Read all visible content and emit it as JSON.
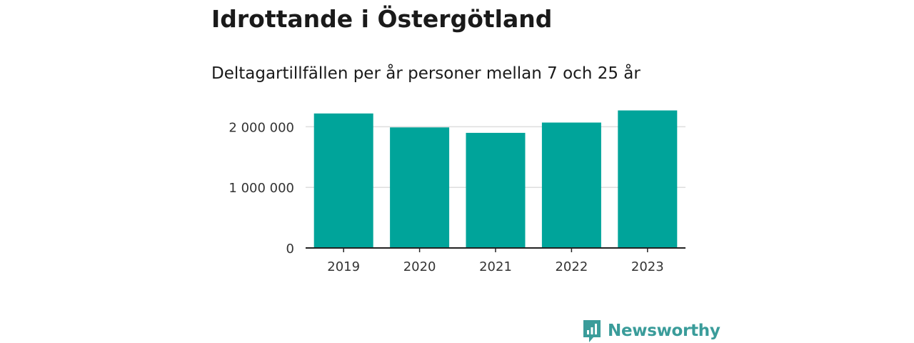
{
  "title": "Idrottande i Östergötland",
  "subtitle": "Deltagartillfällen per år personer mellan 7 och 25 år",
  "brand": {
    "name": "Newsworthy",
    "logo_icon": "newsworthy-logo-icon",
    "color": "#3a9c9a"
  },
  "colors": {
    "bar": "#00a49a",
    "grid": "#dddddd",
    "axis": "#222222"
  },
  "chart_data": {
    "type": "bar",
    "categories": [
      "2019",
      "2020",
      "2021",
      "2022",
      "2023"
    ],
    "values": [
      2220000,
      1990000,
      1900000,
      2070000,
      2270000
    ],
    "ylim": [
      0,
      2300000
    ],
    "yticks": [
      0,
      1000000,
      2000000
    ],
    "ytick_labels": [
      "0",
      "1 000 000",
      "2 000 000"
    ],
    "grid": true,
    "xlabel": "",
    "ylabel": ""
  }
}
